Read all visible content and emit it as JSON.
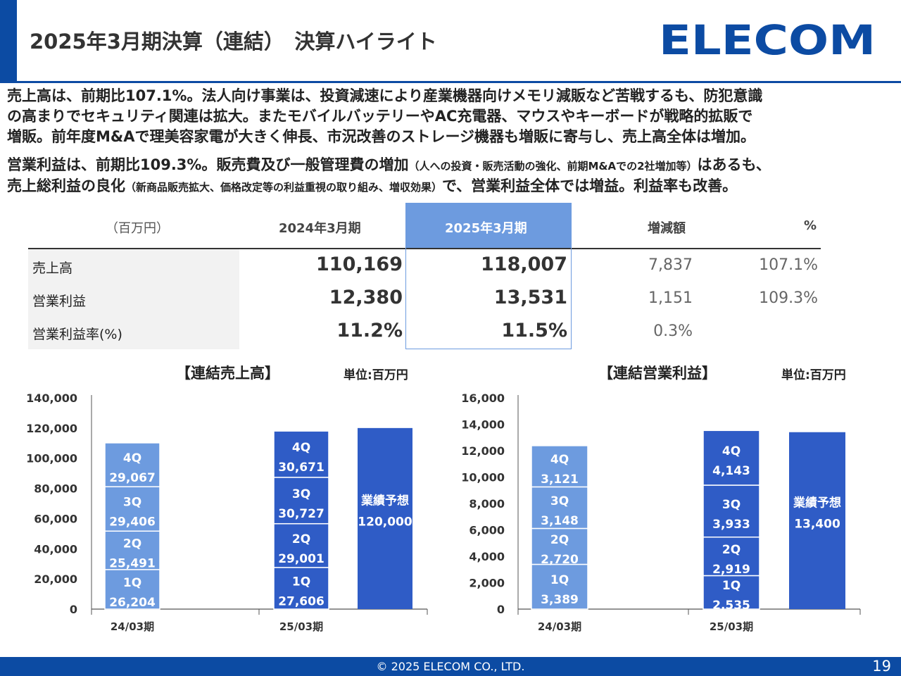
{
  "header": {
    "title": "2025年3月期決算（連結）　決算ハイライト",
    "logo_text": "ELECOM"
  },
  "colors": {
    "brand_blue": "#0c4ba3",
    "highlight_blue": "#6d9bdf",
    "bar_light": "#6d9bdf",
    "bar_dark": "#2f5cc6"
  },
  "summary": {
    "sales_lines": [
      "売上高は、前期比107.1%。法人向け事業は、投資減速により産業機器向けメモリ減販など苦戦するも、防犯意識",
      "の高まりでセキュリティ関連は拡大。またモバイルバッテリーやAC充電器、マウスやキーボードが戦略的拡販で",
      "増販。前年度M&Aで理美容家電が大きく伸長、市況改善のストレージ機器も増販に寄与し、売上高全体は増加。"
    ],
    "profit_line1_main": "営業利益は、前期比109.3%。販売費及び一般管理費の増加",
    "profit_line1_note": "（人への投資・販売活動の強化、前期M&Aでの2社増加等）",
    "profit_line1_tail": "はあるも、",
    "profit_line2_main": "売上総利益の良化",
    "profit_line2_note": "（新商品販売拡大、価格改定等の利益重視の取り組み、増収効果）",
    "profit_line2_tail": "で、営業利益全体では増益。利益率も改善。"
  },
  "kpi_table": {
    "unit_label": "（百万円）",
    "columns": [
      "2024年3月期",
      "2025年3月期",
      "増減額",
      "%"
    ],
    "rows": [
      {
        "label": "売上高",
        "prev": "110,169",
        "curr": "118,007",
        "diff": "7,837",
        "pct": "107.1%"
      },
      {
        "label": "営業利益",
        "prev": "12,380",
        "curr": "13,531",
        "diff": "1,151",
        "pct": "109.3%"
      },
      {
        "label": "営業利益率(%)",
        "prev": "11.2%",
        "curr": "11.5%",
        "diff": "0.3%",
        "pct": ""
      }
    ]
  },
  "chart_data": [
    {
      "type": "bar",
      "title": "【連結売上高】",
      "unit": "単位:百万円",
      "stacked": true,
      "categories": [
        "24/03期",
        "25/03期"
      ],
      "ylim": [
        0,
        140000
      ],
      "yticks": [
        0,
        20000,
        40000,
        60000,
        80000,
        100000,
        120000,
        140000
      ],
      "ytick_labels": [
        "0",
        "20,000",
        "40,000",
        "60,000",
        "80,000",
        "100,000",
        "120,000",
        "140,000"
      ],
      "series": [
        {
          "name": "1Q",
          "values": [
            26204,
            27606
          ],
          "labels": [
            "26,204",
            "27,606"
          ]
        },
        {
          "name": "2Q",
          "values": [
            25491,
            29001
          ],
          "labels": [
            "25,491",
            "29,001"
          ]
        },
        {
          "name": "3Q",
          "values": [
            29406,
            30727
          ],
          "labels": [
            "29,406",
            "30,727"
          ]
        },
        {
          "name": "4Q",
          "values": [
            29067,
            30671
          ],
          "labels": [
            "29,067",
            "30,671"
          ]
        }
      ],
      "forecast": {
        "name": "業績予想",
        "value": 120000,
        "label": "120,000"
      }
    },
    {
      "type": "bar",
      "title": "【連結営業利益】",
      "unit": "単位:百万円",
      "stacked": true,
      "categories": [
        "24/03期",
        "25/03期"
      ],
      "ylim": [
        0,
        16000
      ],
      "yticks": [
        0,
        2000,
        4000,
        6000,
        8000,
        10000,
        12000,
        14000,
        16000
      ],
      "ytick_labels": [
        "0",
        "2,000",
        "4,000",
        "6,000",
        "8,000",
        "10,000",
        "12,000",
        "14,000",
        "16,000"
      ],
      "series": [
        {
          "name": "1Q",
          "values": [
            3389,
            2535
          ],
          "labels": [
            "3,389",
            "2,535"
          ]
        },
        {
          "name": "2Q",
          "values": [
            2720,
            2919
          ],
          "labels": [
            "2,720",
            "2,919"
          ]
        },
        {
          "name": "3Q",
          "values": [
            3148,
            3933
          ],
          "labels": [
            "3,148",
            "3,933"
          ]
        },
        {
          "name": "4Q",
          "values": [
            3121,
            4143
          ],
          "labels": [
            "3,121",
            "4,143"
          ]
        }
      ],
      "forecast": {
        "name": "業績予想",
        "value": 13400,
        "label": "13,400"
      }
    }
  ],
  "footer": {
    "copyright": "© 2025 ELECOM CO., LTD.",
    "page": "19"
  }
}
